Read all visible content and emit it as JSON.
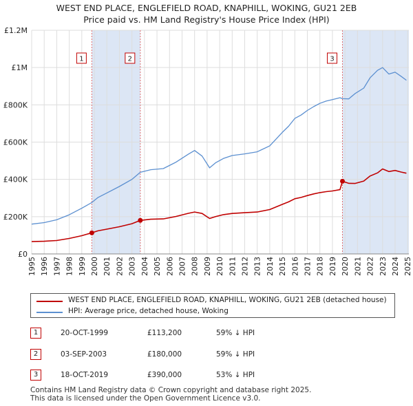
{
  "title_line1": "WEST END PLACE, ENGLEFIELD ROAD, KNAPHILL, WOKING, GU21 2EB",
  "title_line2": "Price paid vs. HM Land Registry's House Price Index (HPI)",
  "chart_data": {
    "type": "line",
    "xlim": [
      1995,
      2025.1
    ],
    "ylim": [
      0,
      1200000
    ],
    "yticks": [
      0,
      200000,
      400000,
      600000,
      800000,
      1000000,
      1200000
    ],
    "ytick_labels": [
      "£0",
      "£200K",
      "£400K",
      "£600K",
      "£800K",
      "£1M",
      "£1.2M"
    ],
    "xticks": [
      "1995",
      "1996",
      "1997",
      "1998",
      "1999",
      "2000",
      "2001",
      "2002",
      "2003",
      "2004",
      "2005",
      "2006",
      "2007",
      "2008",
      "2009",
      "2010",
      "2011",
      "2012",
      "2013",
      "2014",
      "2015",
      "2016",
      "2017",
      "2018",
      "2019",
      "2020",
      "2021",
      "2022",
      "2023",
      "2024",
      "2025"
    ],
    "colors": {
      "property": "#c00000",
      "hpi": "#5b8fd0",
      "shade": "#dce6f5",
      "vline": "#e07070",
      "grid": "#dddddd"
    },
    "series": [
      {
        "name": "WEST END PLACE, ENGLEFIELD ROAD, KNAPHILL, WOKING, GU21 2EB (detached house)",
        "key": "property",
        "x": [
          1995.0,
          1996.0,
          1997.0,
          1998.0,
          1999.0,
          1999.8,
          2000.3,
          2001.0,
          2002.0,
          2003.0,
          2003.67,
          2004.5,
          2005.5,
          2006.5,
          2007.5,
          2008.0,
          2008.6,
          2009.2,
          2009.7,
          2010.3,
          2011.0,
          2012.0,
          2013.0,
          2014.0,
          2015.0,
          2015.5,
          2016.0,
          2016.5,
          2017.0,
          2017.5,
          2018.0,
          2018.5,
          2019.0,
          2019.6,
          2019.8,
          2020.3,
          2020.8,
          2021.5,
          2022.0,
          2022.6,
          2023.0,
          2023.5,
          2024.0,
          2024.5,
          2024.9
        ],
        "y": [
          66000,
          68000,
          72000,
          83000,
          98000,
          113200,
          124000,
          133000,
          146000,
          162000,
          180000,
          186000,
          188000,
          201000,
          218000,
          225000,
          217000,
          190000,
          201000,
          211000,
          217000,
          221000,
          225000,
          238000,
          266000,
          279000,
          296000,
          303000,
          313000,
          322000,
          329000,
          334000,
          338000,
          345000,
          390000,
          379000,
          378000,
          391000,
          418000,
          435000,
          456000,
          442000,
          448000,
          439000,
          433000
        ]
      },
      {
        "name": "HPI: Average price, detached house, Woking",
        "key": "hpi",
        "x": [
          1995.0,
          1996.0,
          1997.0,
          1998.0,
          1999.0,
          1999.8,
          2000.3,
          2001.0,
          2002.0,
          2003.0,
          2003.67,
          2004.5,
          2005.5,
          2006.5,
          2007.5,
          2008.0,
          2008.6,
          2009.2,
          2009.7,
          2010.3,
          2011.0,
          2012.0,
          2013.0,
          2014.0,
          2015.0,
          2015.5,
          2016.0,
          2016.5,
          2017.0,
          2017.5,
          2018.0,
          2018.5,
          2019.0,
          2019.6,
          2019.8,
          2020.3,
          2020.8,
          2021.5,
          2022.0,
          2022.6,
          2023.0,
          2023.5,
          2024.0,
          2024.5,
          2024.9
        ],
        "y": [
          160000,
          168000,
          183000,
          210000,
          245000,
          276000,
          303000,
          327000,
          362000,
          400000,
          438000,
          452000,
          458000,
          492000,
          535000,
          555000,
          525000,
          462000,
          490000,
          512000,
          528000,
          537000,
          548000,
          580000,
          652000,
          685000,
          727000,
          745000,
          770000,
          790000,
          808000,
          820000,
          828000,
          838000,
          833000,
          832000,
          860000,
          890000,
          945000,
          985000,
          1000000,
          965000,
          975000,
          952000,
          932000
        ]
      }
    ],
    "transactions": [
      {
        "label": "1",
        "x": 1999.8,
        "price": 113200
      },
      {
        "label": "2",
        "x": 2003.67,
        "price": 180000
      },
      {
        "label": "3",
        "x": 2019.8,
        "price": 390000
      }
    ]
  },
  "legend": {
    "property_label": "WEST END PLACE, ENGLEFIELD ROAD, KNAPHILL, WOKING, GU21 2EB (detached house)",
    "hpi_label": "HPI: Average price, detached house, Woking"
  },
  "table": [
    {
      "num": "1",
      "date": "20-OCT-1999",
      "price": "£113,200",
      "hpi": "59% ↓ HPI"
    },
    {
      "num": "2",
      "date": "03-SEP-2003",
      "price": "£180,000",
      "hpi": "59% ↓ HPI"
    },
    {
      "num": "3",
      "date": "18-OCT-2019",
      "price": "£390,000",
      "hpi": "53% ↓ HPI"
    }
  ],
  "footer_line1": "Contains HM Land Registry data © Crown copyright and database right 2025.",
  "footer_line2": "This data is licensed under the Open Government Licence v3.0."
}
